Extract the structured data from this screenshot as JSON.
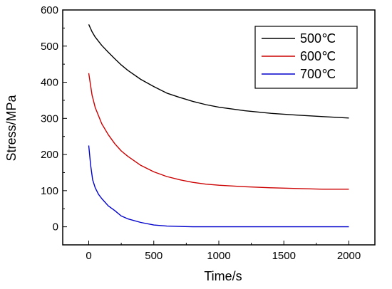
{
  "chart_data": {
    "type": "line",
    "xlabel": "Time/s",
    "ylabel": "Stress/MPa",
    "xlim": [
      -200,
      2200
    ],
    "ylim": [
      -50,
      600
    ],
    "x_ticks": [
      0,
      500,
      1000,
      1500,
      2000
    ],
    "y_ticks": [
      0,
      100,
      200,
      300,
      400,
      500,
      600
    ],
    "grid": false,
    "legend_position": "top-right",
    "series": [
      {
        "name": "500℃",
        "color": "#000000",
        "x": [
          0,
          25,
          50,
          100,
          150,
          200,
          250,
          300,
          400,
          500,
          600,
          700,
          800,
          900,
          1000,
          1200,
          1400,
          1600,
          1800,
          2000
        ],
        "y": [
          560,
          540,
          525,
          502,
          483,
          465,
          448,
          433,
          408,
          388,
          370,
          358,
          347,
          338,
          331,
          321,
          314,
          309,
          305,
          301
        ]
      },
      {
        "name": "600℃",
        "color": "#cc0000",
        "x": [
          0,
          25,
          50,
          100,
          150,
          200,
          250,
          300,
          400,
          500,
          600,
          700,
          800,
          900,
          1000,
          1200,
          1400,
          1600,
          1800,
          2000
        ],
        "y": [
          425,
          365,
          330,
          285,
          255,
          230,
          210,
          195,
          170,
          152,
          139,
          130,
          123,
          118,
          115,
          111,
          108,
          106,
          104,
          104
        ]
      },
      {
        "name": "700℃",
        "color": "#0000cc",
        "x": [
          0,
          15,
          30,
          50,
          75,
          100,
          150,
          200,
          250,
          300,
          400,
          500,
          600,
          800,
          1000,
          1500,
          2000
        ],
        "y": [
          225,
          170,
          130,
          108,
          90,
          78,
          58,
          45,
          30,
          22,
          12,
          5,
          2,
          0,
          0,
          0,
          0
        ]
      }
    ]
  }
}
